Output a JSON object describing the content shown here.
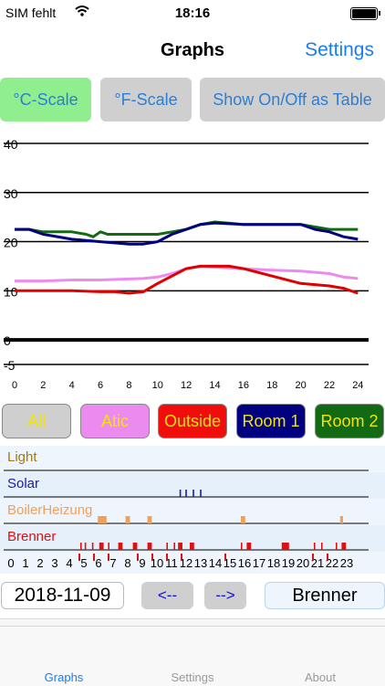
{
  "status": {
    "carrier": "SIM fehlt",
    "time": "18:16"
  },
  "nav": {
    "title": "Graphs",
    "settings": "Settings"
  },
  "scale_buttons": {
    "celsius": "°C-Scale",
    "fahrenheit": "°F-Scale",
    "table": "Show On/Off as Table"
  },
  "colors": {
    "light": "#a07a18",
    "solar": "#1a1ab0",
    "boiler": "#f0a058",
    "brenner": "#e01010",
    "atic": "#ec8bef",
    "outside": "#e00000",
    "room1": "#000080",
    "room2": "#126b12",
    "accent": "#1a7cf5"
  },
  "chart_data": {
    "type": "line",
    "xlim": [
      0,
      25
    ],
    "ylim": [
      -6,
      41
    ],
    "x_ticks": [
      0,
      2,
      4,
      6,
      8,
      10,
      12,
      14,
      16,
      18,
      20,
      22,
      24
    ],
    "y_gridlines": [
      40,
      30,
      20,
      10,
      0,
      -5
    ],
    "y_tick_labels": [
      "40",
      "30",
      "20",
      "10",
      "0",
      "-5"
    ],
    "series": [
      {
        "key": "room2",
        "color": "#126b12",
        "x": [
          0,
          1,
          2,
          4,
          5,
          5.5,
          6,
          6.5,
          8,
          10,
          11,
          12,
          13,
          14,
          16,
          18,
          20,
          22,
          24
        ],
        "y": [
          22.5,
          22.5,
          22,
          22,
          21.5,
          21,
          22,
          21.5,
          21.5,
          21.5,
          22,
          22.5,
          23.5,
          24,
          23.5,
          23.5,
          23.5,
          22.5,
          22.5
        ]
      },
      {
        "key": "room1",
        "color": "#000080",
        "x": [
          0,
          1,
          2,
          4,
          6,
          8,
          9,
          10,
          11,
          12,
          13,
          14,
          16,
          18,
          20,
          21,
          22,
          23,
          24
        ],
        "y": [
          22.5,
          22.5,
          21.5,
          20.5,
          20,
          19.5,
          19.5,
          20,
          21.5,
          22.5,
          23.5,
          23.8,
          23.5,
          23.5,
          23.5,
          22.5,
          22,
          21,
          20.5
        ]
      },
      {
        "key": "atic",
        "color": "#ec8bef",
        "x": [
          0,
          2,
          4,
          6,
          8,
          9,
          10,
          11,
          12,
          13,
          14,
          16,
          18,
          20,
          22,
          23,
          24
        ],
        "y": [
          12,
          12,
          12.2,
          12.2,
          12.4,
          12.5,
          12.8,
          13.5,
          14.5,
          15,
          14.8,
          14.5,
          14.2,
          14,
          13.5,
          12.8,
          12.5
        ]
      },
      {
        "key": "outside",
        "color": "#e00000",
        "x": [
          0,
          2,
          4,
          6,
          7,
          8,
          9,
          10,
          11,
          12,
          13,
          14,
          15,
          16,
          18,
          20,
          22,
          23,
          24
        ],
        "y": [
          10,
          10,
          10,
          9.8,
          9.8,
          9.5,
          9.8,
          11.5,
          13,
          14.5,
          15,
          15,
          15,
          14.5,
          13,
          11.5,
          11,
          10.5,
          9.5
        ]
      }
    ],
    "buttons": {
      "all": "All",
      "atic": "Atic",
      "outside": "Outside",
      "room1": "Room 1",
      "room2": "Room 2"
    }
  },
  "onoff": {
    "rows": [
      {
        "key": "light",
        "label": "Light",
        "events": []
      },
      {
        "key": "solar",
        "label": "Solar",
        "events": [
          [
            11.8,
            0.1
          ],
          [
            12.2,
            0.1
          ],
          [
            12.7,
            0.1
          ],
          [
            13.2,
            0.1
          ]
        ]
      },
      {
        "key": "boiler",
        "label": "BoilerHeizung",
        "events": [
          [
            6.2,
            0.6
          ],
          [
            8.1,
            0.3
          ],
          [
            9.6,
            0.3
          ],
          [
            16.0,
            0.3
          ],
          [
            22.8,
            0.2
          ]
        ]
      },
      {
        "key": "brenner",
        "label": "Brenner",
        "events": [
          [
            5.0,
            0.1
          ],
          [
            5.3,
            0.1
          ],
          [
            5.8,
            0.1
          ],
          [
            6.3,
            0.3
          ],
          [
            6.9,
            0.1
          ],
          [
            7.6,
            0.3
          ],
          [
            8.6,
            0.3
          ],
          [
            9.6,
            0.3
          ],
          [
            10.9,
            0.1
          ],
          [
            11.4,
            0.1
          ],
          [
            11.7,
            0.3
          ],
          [
            12.5,
            0.3
          ],
          [
            16.0,
            0.1
          ],
          [
            16.4,
            0.3
          ],
          [
            18.8,
            0.5
          ],
          [
            21.0,
            0.1
          ],
          [
            21.5,
            0.1
          ],
          [
            22.5,
            0.1
          ],
          [
            22.9,
            0.3
          ]
        ]
      }
    ],
    "hour_labels": [
      "0",
      "1",
      "2",
      "3",
      "4",
      "5",
      "6",
      "7",
      "8",
      "9",
      "10",
      "11",
      "12",
      "13",
      "14",
      "15",
      "16",
      "17",
      "18",
      "19",
      "20",
      "21",
      "22",
      "23"
    ],
    "brenner_hour_marks": [
      5,
      6,
      7,
      9,
      10,
      11,
      12,
      15,
      21,
      22
    ]
  },
  "controls": {
    "date": "2018-11-09",
    "prev": "<--",
    "next": "-->",
    "device": "Brenner"
  },
  "tabs": {
    "graphs": "Graphs",
    "settings": "Settings",
    "about": "About"
  }
}
